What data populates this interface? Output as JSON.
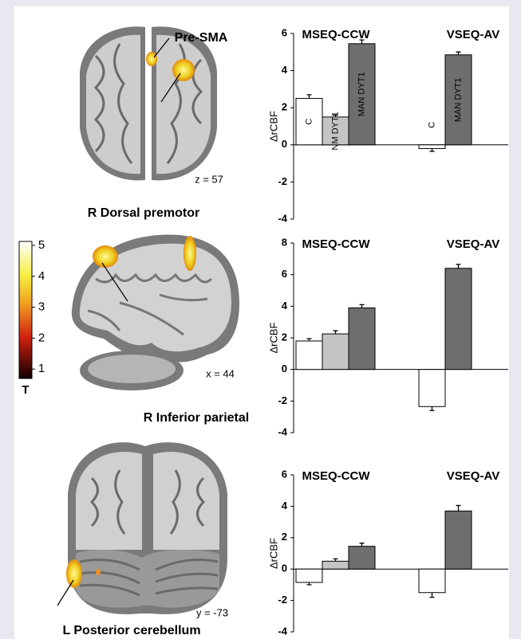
{
  "panels": [
    {
      "title": "R Dorsal premotor",
      "coordinate": "z = 57",
      "annotation": "Pre-SMA"
    },
    {
      "title": "R Inferior parietal",
      "coordinate": "x = 44"
    },
    {
      "title": "L Posterior cerebellum",
      "coordinate": "y = -73"
    }
  ],
  "colorbar": {
    "label": "T",
    "ticks": [
      5,
      4,
      3,
      2,
      1
    ]
  },
  "chart_data": [
    {
      "type": "bar",
      "ylabel": "ΔrCBF",
      "categories": [
        "MSEQ-CCW",
        "VSEQ-AV"
      ],
      "ylim": [
        -4,
        6
      ],
      "yticks": [
        -4,
        -2,
        0,
        2,
        4,
        6
      ],
      "series": [
        {
          "name": "C",
          "color": "#ffffff",
          "values": [
            2.5,
            -0.2
          ],
          "errors": [
            0.2,
            0.15
          ]
        },
        {
          "name": "NM DYT1",
          "color": "#c4c4c4",
          "values": [
            1.5,
            null
          ],
          "errors": [
            0.1,
            null
          ]
        },
        {
          "name": "MAN DYT1",
          "color": "#6e6e6e",
          "values": [
            5.45,
            4.85
          ],
          "errors": [
            0.2,
            0.15
          ]
        }
      ]
    },
    {
      "type": "bar",
      "ylabel": "ΔrCBF",
      "categories": [
        "MSEQ-CCW",
        "VSEQ-AV"
      ],
      "ylim": [
        -4,
        8
      ],
      "yticks": [
        -4,
        -2,
        0,
        2,
        4,
        6,
        8
      ],
      "series": [
        {
          "color": "#ffffff",
          "values": [
            1.8,
            -2.35
          ],
          "errors": [
            0.15,
            0.25
          ]
        },
        {
          "color": "#c4c4c4",
          "values": [
            2.25,
            null
          ],
          "errors": [
            0.2,
            null
          ]
        },
        {
          "color": "#6e6e6e",
          "values": [
            3.9,
            6.4
          ],
          "errors": [
            0.2,
            0.25
          ]
        }
      ]
    },
    {
      "type": "bar",
      "ylabel": "ΔrCBF",
      "categories": [
        "MSEQ-CCW",
        "VSEQ-AV"
      ],
      "ylim": [
        -4,
        6
      ],
      "yticks": [
        -4,
        -2,
        0,
        2,
        4,
        6
      ],
      "series": [
        {
          "color": "#ffffff",
          "values": [
            -0.85,
            -1.5
          ],
          "errors": [
            0.15,
            0.3
          ]
        },
        {
          "color": "#c4c4c4",
          "values": [
            0.5,
            null
          ],
          "errors": [
            0.15,
            null
          ]
        },
        {
          "color": "#6e6e6e",
          "values": [
            1.45,
            3.7
          ],
          "errors": [
            0.2,
            0.35
          ]
        }
      ]
    }
  ]
}
